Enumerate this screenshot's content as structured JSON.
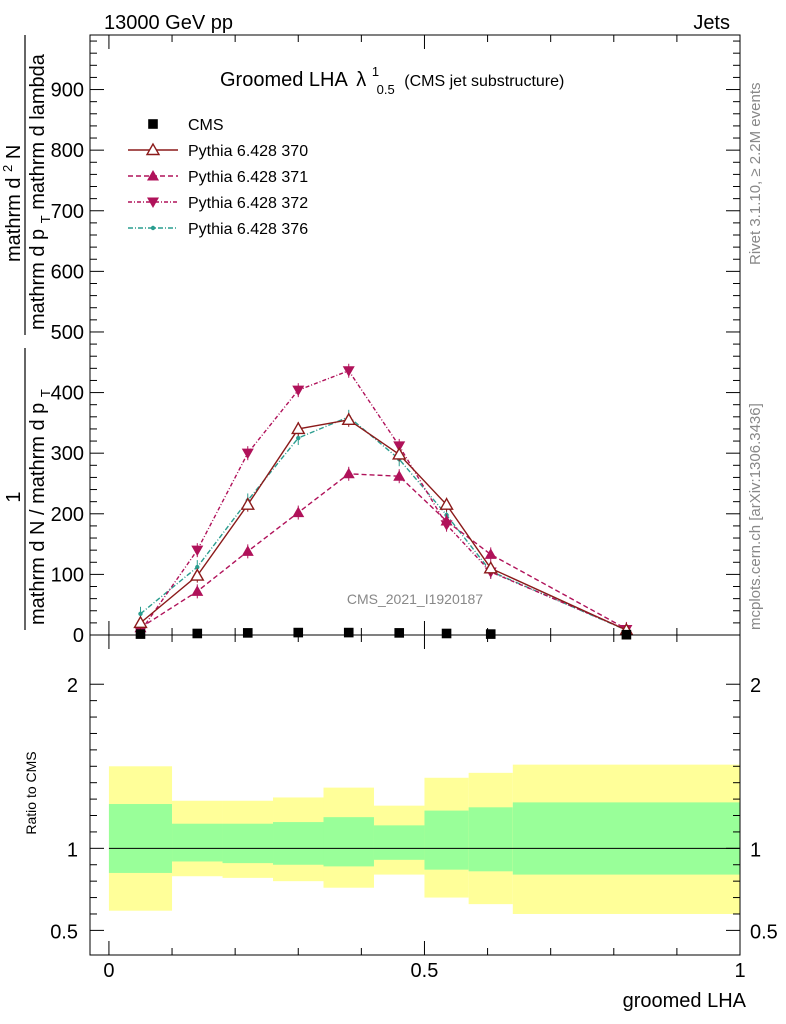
{
  "header": {
    "left": "13000 GeV pp",
    "right": "Jets"
  },
  "side_labels": {
    "rivet": "Rivet 3.1.10, ≥ 2.2M events",
    "mcplots": "mcplots.cern.ch [arXiv:1306.3436]"
  },
  "watermark": "CMS_2021_I1920187",
  "chart_data": [
    {
      "type": "line",
      "title": "Groomed LHA",
      "title_symbol": "λ",
      "title_sup": "1",
      "title_sub": "0.5",
      "title_suffix": "(CMS jet substructure)",
      "ylabel_numerator": "mathrm d²N",
      "ylabel_numerator_plain": "mathrm d",
      "ylabel_numerator_sup": "2",
      "ylabel_numerator_tail": "N",
      "ylabel_denominator": "mathrm d p_T mathrm d lambda",
      "ylabel_denominator_parts": [
        "mathrm d p",
        "T",
        " mathrm d lambda"
      ],
      "ylabel_prefix_num": "1",
      "ylabel_prefix_den": "mathrm d N / mathrm d p",
      "ylabel_prefix_den_sub": "T",
      "xlim": [
        -0.03,
        1.0
      ],
      "ylim": [
        0,
        990
      ],
      "y_ticks": [
        0,
        100,
        200,
        300,
        400,
        500,
        600,
        700,
        800,
        900
      ],
      "y_tick_labels": [
        "0",
        "100",
        "200",
        "300",
        "400",
        "500",
        "600",
        "700",
        "800",
        "900"
      ],
      "legend_position": "top-left",
      "series": [
        {
          "name": "CMS",
          "marker": "square",
          "color": "#000000",
          "dash": "",
          "x": [
            0.05,
            0.14,
            0.22,
            0.3,
            0.38,
            0.46,
            0.535,
            0.605,
            0.82
          ],
          "y": [
            1.5,
            2.5,
            3.5,
            4.0,
            4.0,
            3.5,
            2.5,
            1.5,
            0.5
          ]
        },
        {
          "name": "Pythia 6.428 370",
          "marker": "triangle-up-open",
          "color": "#8b1a1a",
          "dash": "",
          "x": [
            0.05,
            0.14,
            0.22,
            0.3,
            0.38,
            0.46,
            0.535,
            0.605,
            0.82
          ],
          "y": [
            20,
            98,
            215,
            340,
            355,
            298,
            215,
            110,
            8
          ]
        },
        {
          "name": "Pythia 6.428 371",
          "marker": "triangle-up",
          "color": "#b0125a",
          "dash": "5,3",
          "x": [
            0.05,
            0.14,
            0.22,
            0.3,
            0.38,
            0.46,
            0.535,
            0.605,
            0.82
          ],
          "y": [
            12,
            72,
            138,
            202,
            266,
            262,
            188,
            133,
            10
          ]
        },
        {
          "name": "Pythia 6.428 372",
          "marker": "triangle-down",
          "color": "#b0125a",
          "dash": "4,2,1,2",
          "x": [
            0.05,
            0.14,
            0.22,
            0.3,
            0.38,
            0.46,
            0.535,
            0.605,
            0.82
          ],
          "y": [
            6,
            140,
            300,
            404,
            436,
            312,
            182,
            104,
            9
          ]
        },
        {
          "name": "Pythia 6.428 376",
          "marker": "dot",
          "color": "#2a9d8f",
          "dash": "5,2,1,2",
          "x": [
            0.05,
            0.14,
            0.22,
            0.3,
            0.38,
            0.46,
            0.535,
            0.605,
            0.82
          ],
          "y": [
            35,
            112,
            222,
            325,
            360,
            290,
            198,
            105,
            8
          ]
        }
      ]
    },
    {
      "type": "area",
      "ylabel": "Ratio to CMS",
      "xlabel": "groomed LHA",
      "xlim": [
        -0.03,
        1.0
      ],
      "ylim": [
        0.35,
        2.3
      ],
      "y_ticks": [
        0.5,
        1,
        2
      ],
      "y_tick_labels": [
        "0.5",
        "1",
        "2"
      ],
      "x_ticks": [
        0,
        0.5,
        1
      ],
      "x_tick_labels": [
        "0",
        "0.5",
        "1"
      ],
      "reference_line": 1,
      "bands": {
        "x_edges": [
          0.0,
          0.1,
          0.18,
          0.26,
          0.34,
          0.42,
          0.5,
          0.57,
          0.64,
          1.0
        ],
        "outer_color": "#ffff99",
        "inner_color": "#99ff99",
        "outer_low": [
          0.62,
          0.83,
          0.82,
          0.8,
          0.76,
          0.84,
          0.7,
          0.66,
          0.6
        ],
        "outer_high": [
          1.5,
          1.29,
          1.29,
          1.31,
          1.37,
          1.26,
          1.43,
          1.46,
          1.51
        ],
        "inner_low": [
          0.85,
          0.92,
          0.91,
          0.9,
          0.89,
          0.93,
          0.87,
          0.86,
          0.84
        ],
        "inner_high": [
          1.27,
          1.15,
          1.15,
          1.16,
          1.19,
          1.14,
          1.23,
          1.25,
          1.28
        ]
      }
    }
  ]
}
